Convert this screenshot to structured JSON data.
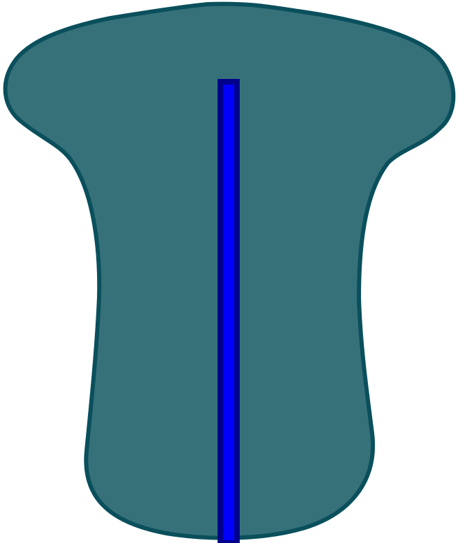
{
  "figure": {
    "shape_name": "rounded-body-outline",
    "colors": {
      "background": "#ffffff",
      "body_fill": "#36717A",
      "body_stroke": "#0A4F5C",
      "rod_fill": "#0000FF",
      "rod_stroke": "#00008B"
    }
  }
}
